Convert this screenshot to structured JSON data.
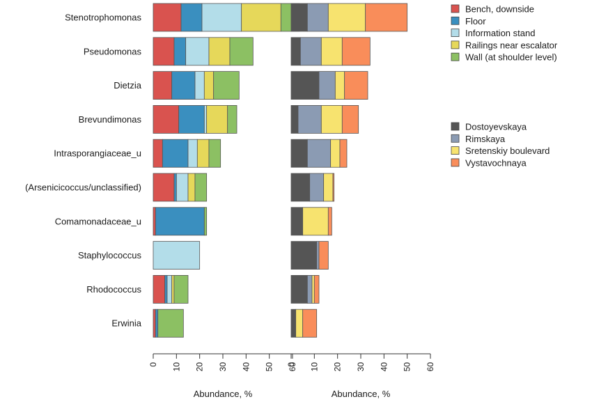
{
  "chart_data": {
    "type": "bar",
    "orientation": "horizontal",
    "stacked": true,
    "categories": [
      "Stenotrophomonas",
      "Pseudomonas",
      "Dietzia",
      "Brevundimonas",
      "Intrasporangiaceae_u",
      "(Arsenicicoccus/unclassified)",
      "Comamonadaceae_u",
      "Staphylococcus",
      "Rhodococcus",
      "Erwinia"
    ],
    "panels": [
      {
        "name": "by-surface",
        "xlabel": "Abundance, %",
        "xlim": [
          0,
          60
        ],
        "xticks": [
          0,
          10,
          20,
          30,
          40,
          50,
          60
        ],
        "series": [
          {
            "name": "Bench, downside",
            "color": "#d9534f",
            "values": [
              12,
              9,
              8,
              11,
              4,
              9,
              1,
              0,
              5,
              1
            ]
          },
          {
            "name": "Floor",
            "color": "#3a8fbf",
            "values": [
              9,
              5,
              10,
              11,
              11,
              1,
              21,
              0,
              1,
              1
            ]
          },
          {
            "name": "Information stand",
            "color": "#b3dde9",
            "values": [
              17,
              10,
              4,
              1,
              4,
              5,
              0,
              20,
              2,
              0
            ]
          },
          {
            "name": "Railings near escalator",
            "color": "#e6d85a",
            "values": [
              17,
              9,
              4,
              9,
              5,
              3,
              0,
              0,
              1,
              0
            ]
          },
          {
            "name": "Wall (at shoulder level)",
            "color": "#8cc063",
            "values": [
              8,
              10,
              11,
              4,
              5,
              5,
              1,
              0,
              6,
              11
            ]
          }
        ]
      },
      {
        "name": "by-station",
        "xlabel": "Abundance, %",
        "xlim": [
          0,
          60
        ],
        "xticks": [
          0,
          10,
          20,
          30,
          40,
          50,
          60
        ],
        "series": [
          {
            "name": "Dostoyevskaya",
            "color": "#555555",
            "values": [
              7,
              4,
              12,
              3,
              7,
              8,
              5,
              11,
              7,
              2
            ]
          },
          {
            "name": "Rimskaya",
            "color": "#8b9bb3",
            "values": [
              9,
              9,
              7,
              10,
              10,
              6,
              0,
              1,
              2,
              0
            ]
          },
          {
            "name": "Sretenskiy boulevard",
            "color": "#f7e36f",
            "values": [
              16,
              9,
              4,
              9,
              4,
              4,
              11,
              0,
              1,
              3
            ]
          },
          {
            "name": "Vystavochnaya",
            "color": "#f98d5a",
            "values": [
              18,
              12,
              10,
              7,
              3,
              0.5,
              1.5,
              4,
              2,
              6
            ]
          }
        ]
      }
    ]
  }
}
